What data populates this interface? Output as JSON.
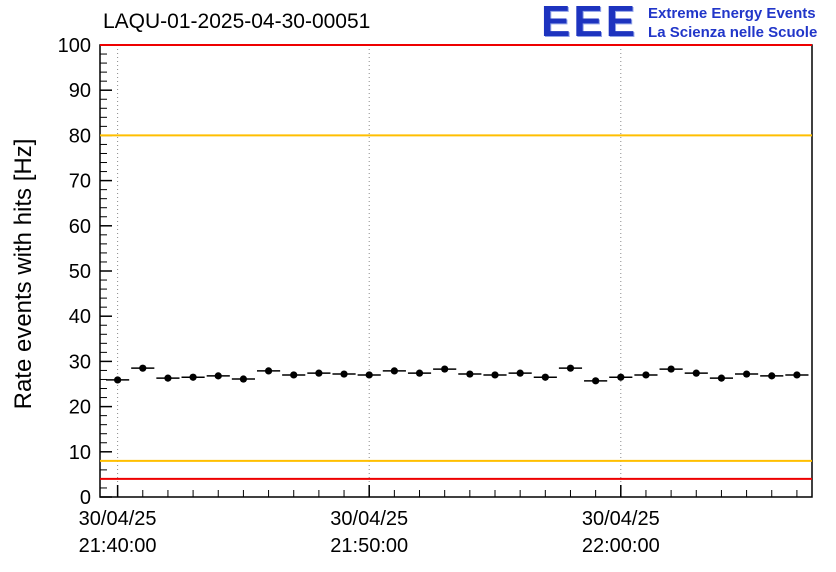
{
  "header": {
    "title": "LAQU-01-2025-04-30-00051",
    "logo": {
      "text": "EEE",
      "line1": "Extreme Energy Events",
      "line2": "La Scienza nelle Scuole",
      "color": "#2136c9"
    }
  },
  "chart_data": {
    "type": "scatter",
    "title": "LAQU-01-2025-04-30-00051",
    "xlabel": "",
    "ylabel": "Rate events with hits [Hz]",
    "ylim": [
      0,
      100
    ],
    "yticks": [
      0,
      10,
      20,
      30,
      40,
      50,
      60,
      70,
      80,
      90,
      100
    ],
    "xlim_minutes": [
      -0.7,
      27.6
    ],
    "grid": "dotted vertical at major x ticks",
    "xticks": [
      {
        "value": 0,
        "date": "30/04/25",
        "time": "21:40:00"
      },
      {
        "value": 10,
        "date": "30/04/25",
        "time": "21:50:00"
      },
      {
        "value": 20,
        "date": "30/04/25",
        "time": "22:00:00"
      }
    ],
    "hlines": [
      {
        "y": 100,
        "color": "#ee0000",
        "meaning": "upper alarm threshold"
      },
      {
        "y": 80,
        "color": "#ffbf00",
        "meaning": "upper warning threshold"
      },
      {
        "y": 8,
        "color": "#ffbf00",
        "meaning": "lower warning threshold"
      },
      {
        "y": 4,
        "color": "#ee0000",
        "meaning": "lower alarm threshold"
      }
    ],
    "marker_color": "#000000",
    "xerr": 0.5,
    "yerr": 0.6,
    "x": [
      0,
      1,
      2,
      3,
      4,
      5,
      6,
      7,
      8,
      9,
      10,
      11,
      12,
      13,
      14,
      15,
      16,
      17,
      18,
      19,
      20,
      21,
      22,
      23,
      24,
      25,
      26,
      27
    ],
    "y": [
      25.9,
      28.5,
      26.3,
      26.5,
      26.8,
      26.1,
      27.9,
      27.0,
      27.4,
      27.2,
      27.0,
      27.9,
      27.4,
      28.3,
      27.2,
      27.0,
      27.4,
      26.5,
      28.5,
      25.7,
      26.5,
      27.0,
      28.3,
      27.4,
      26.3,
      27.2,
      26.8,
      27.0
    ]
  }
}
